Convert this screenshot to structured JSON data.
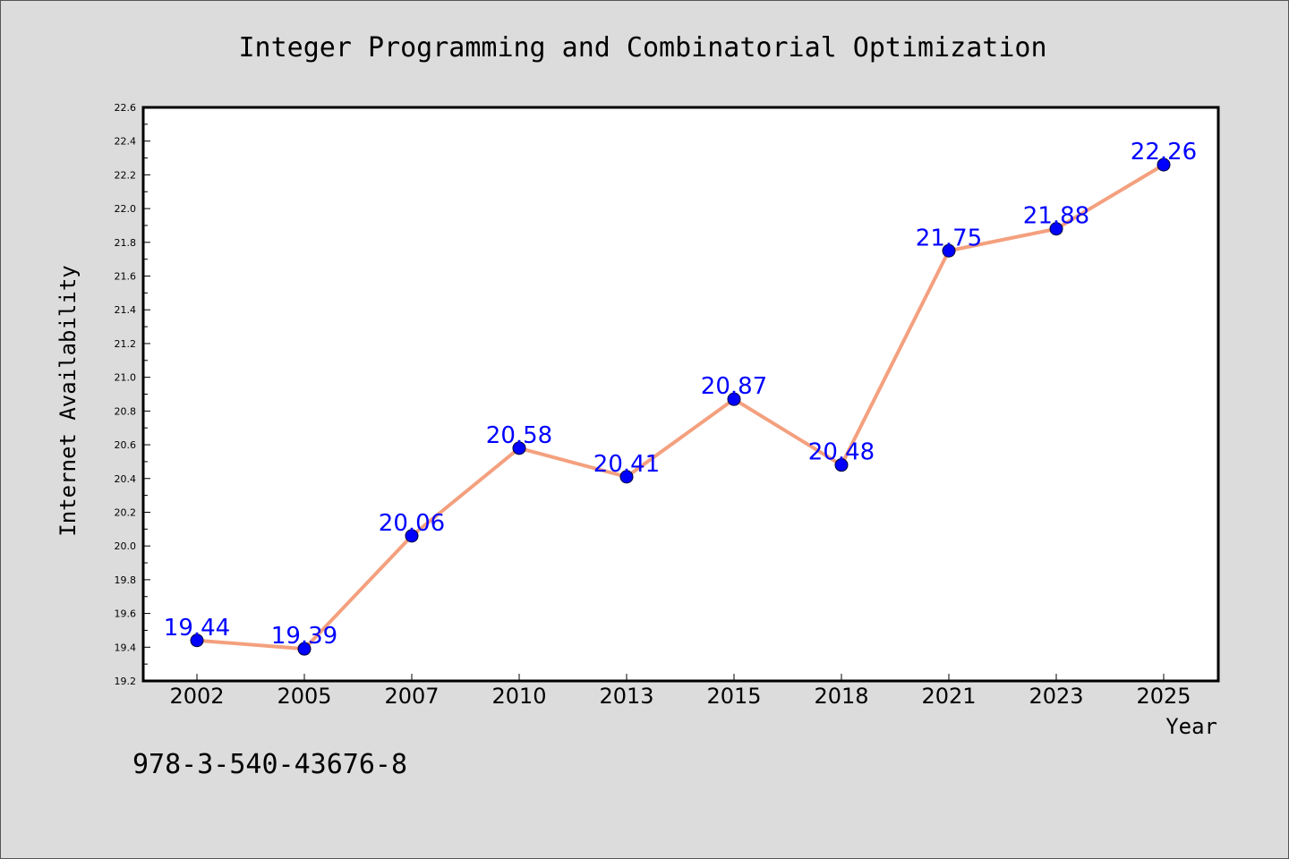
{
  "chart_data": {
    "type": "line",
    "title": "Integer Programming and Combinatorial Optimization",
    "xlabel": "Year",
    "ylabel": "Internet Availability",
    "categories": [
      "2002",
      "2005",
      "2007",
      "2010",
      "2013",
      "2015",
      "2018",
      "2021",
      "2023",
      "2025"
    ],
    "series": [
      {
        "values": [
          19.44,
          19.39,
          20.06,
          20.58,
          20.41,
          20.87,
          20.48,
          21.75,
          21.88,
          22.26
        ],
        "data_labels": [
          "19.44",
          "19.39",
          "20.06",
          "20.58",
          "20.41",
          "20.87",
          "20.48",
          "21.75",
          "21.88",
          "22.26"
        ],
        "line_color": "#f4a07e",
        "marker_color": "#0000ff",
        "label_color": "#0000ff"
      }
    ],
    "ylim": [
      19.2,
      22.6
    ],
    "yticks": [
      "19.2",
      "19.4",
      "19.6",
      "19.8",
      "20.0",
      "20.2",
      "20.4",
      "20.6",
      "20.8",
      "21.0",
      "21.2",
      "21.4",
      "21.6",
      "21.8",
      "22.0",
      "22.2",
      "22.4",
      "22.6"
    ],
    "grid": false,
    "legend": "none",
    "background": "#dcdcdc",
    "plot_background": "#ffffff"
  },
  "footer_text": "978-3-540-43676-8"
}
